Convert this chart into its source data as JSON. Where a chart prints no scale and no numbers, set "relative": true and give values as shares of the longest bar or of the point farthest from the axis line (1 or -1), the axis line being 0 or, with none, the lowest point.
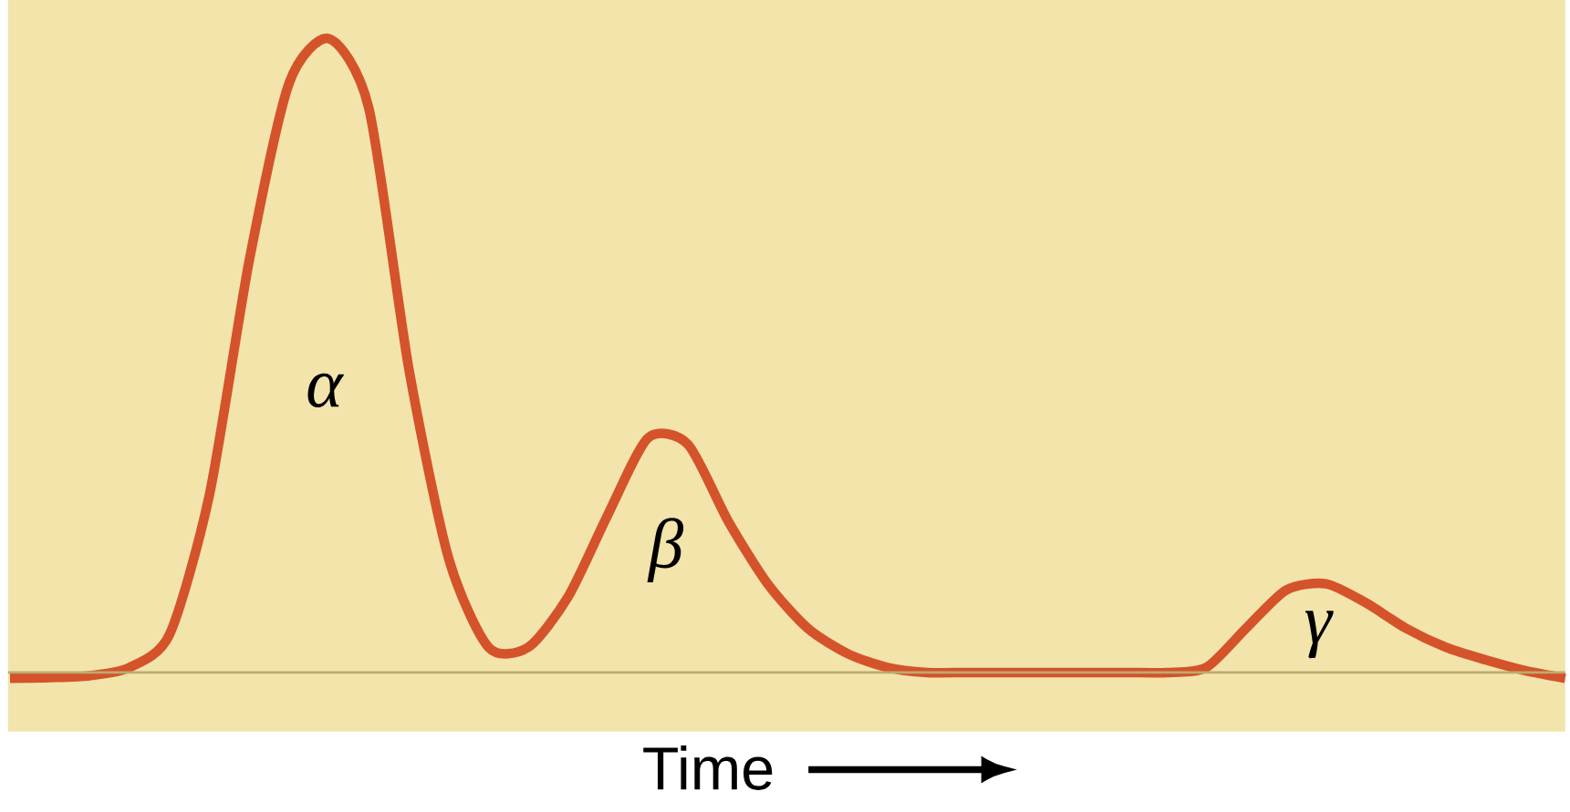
{
  "chart_data": {
    "type": "line",
    "relative": true,
    "xlabel": "Time",
    "color": "#d4532b",
    "marker": "none",
    "ref_lines": [
      {
        "axis": "y",
        "value": 0,
        "color": "#beaa6e"
      }
    ],
    "categories": [
      null,
      null,
      null,
      null,
      null,
      null,
      null,
      null,
      null,
      null,
      null,
      null,
      null,
      null,
      null,
      null,
      null,
      null,
      null,
      null,
      null,
      null,
      null,
      null,
      null,
      null,
      null,
      null,
      null,
      null,
      null,
      null,
      null,
      null,
      null,
      null,
      null,
      null,
      null,
      null
    ],
    "values": [
      -0.009,
      -0.008,
      -0.005,
      0.008,
      0.06,
      0.28,
      0.65,
      0.93,
      1.0,
      0.89,
      0.48,
      0.18,
      0.04,
      0.04,
      0.12,
      0.25,
      0.37,
      0.36,
      0.24,
      0.14,
      0.07,
      0.03,
      0.008,
      0,
      0,
      0,
      0,
      0,
      0,
      0,
      0.008,
      0.07,
      0.13,
      0.14,
      0.11,
      0.07,
      0.04,
      0.02,
      0.003,
      -0.009
    ],
    "annotations": [
      "α",
      "β",
      "γ"
    ]
  }
}
